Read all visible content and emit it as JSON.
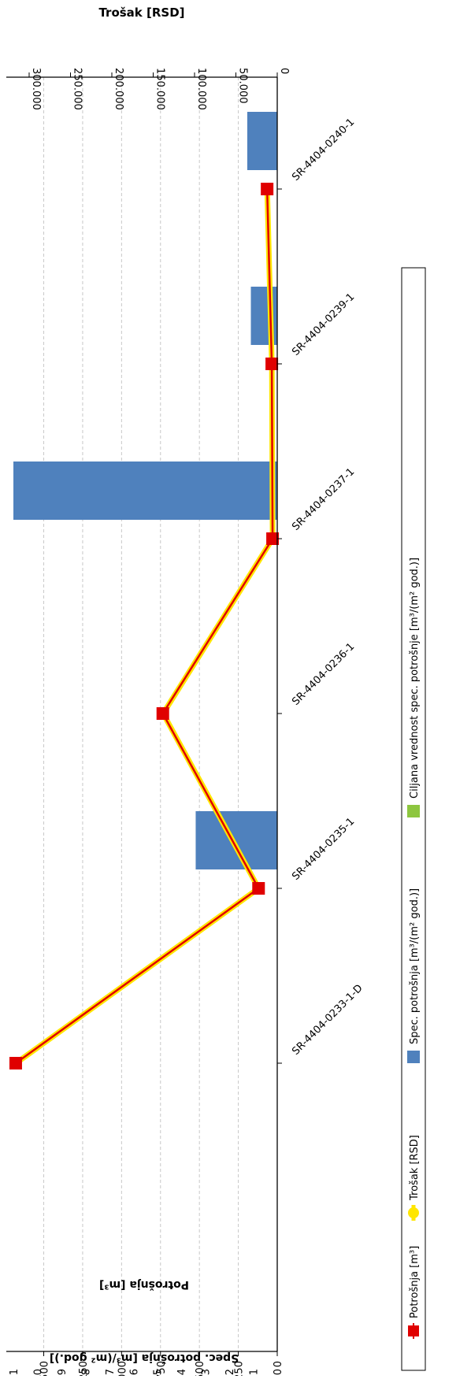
{
  "chart_data": {
    "type": "bar+line",
    "orientation": "rotated-90-clockwise",
    "categories": [
      "SR-4404-0233-1-D",
      "SR-4404-0235-1",
      "SR-4404-0236-1",
      "SR-4404-0237-1",
      "SR-4404-0239-1",
      "SR-4404-0240-1"
    ],
    "axes": {
      "potrosnja": {
        "label": "Potrošnja [m³]",
        "range": [
          0,
          1700
        ],
        "ticks": [
          0,
          250,
          500,
          750,
          1000,
          1250,
          1500
        ],
        "tick_labels": [
          "0",
          "250",
          "500",
          "750",
          "1.000",
          "1.250",
          "1.500"
        ]
      },
      "spec": {
        "label": "Spec. potrošnja [m³/(m² god.)]",
        "range": [
          0,
          1.1
        ],
        "ticks": [
          0,
          0.1,
          0.2,
          0.3,
          0.4,
          0.5,
          0.6,
          0.7,
          0.8,
          0.9,
          1.0,
          1.1
        ],
        "tick_labels": [
          "0,0",
          "0,1",
          "0,2",
          "0,3",
          "0,4",
          "0,5",
          "0,6",
          "0,7",
          "0,8",
          "0,9",
          "1,0",
          "1,1"
        ]
      },
      "trosak": {
        "label": "Trošak [RSD]",
        "range": [
          0,
          320000
        ],
        "ticks": [
          0,
          50000,
          100000,
          150000,
          200000,
          250000,
          300000
        ],
        "tick_labels": [
          "0",
          "50.000",
          "100.000",
          "150.000",
          "200.000",
          "250.000",
          "300.000"
        ]
      }
    },
    "series": [
      {
        "name": "Potrošnja [m³]",
        "kind": "line-marker",
        "axis": "potrosnja",
        "color": "#e00000",
        "values": [
          1680,
          120,
          735,
          30,
          35,
          65
        ]
      },
      {
        "name": "Trošak [RSD]",
        "kind": "line",
        "axis": "trosak",
        "color": "#ffe600",
        "values": [
          316000,
          22500,
          138000,
          5600,
          6500,
          12200
        ]
      },
      {
        "name": "Spec. potrošnja [m³/(m² god.)]",
        "kind": "bar",
        "axis": "spec",
        "color": "#4f81bd",
        "values": [
          0,
          0.34,
          0,
          1.1,
          0.11,
          0.125
        ]
      },
      {
        "name": "Ciljana vrednost spec. potrošnje [m³/(m² god.)]",
        "kind": "bar",
        "axis": "spec",
        "color": "#8dc63f",
        "values": [
          0,
          0,
          0,
          0,
          0,
          0
        ]
      }
    ],
    "grid": true,
    "legend": "bottom"
  }
}
